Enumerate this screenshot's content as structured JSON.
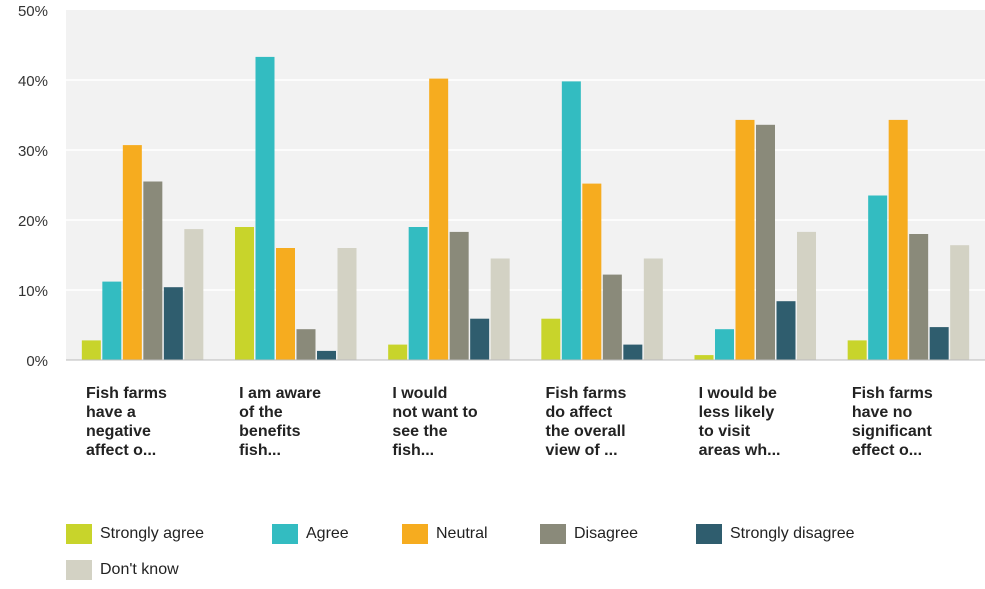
{
  "chart_data": {
    "type": "bar",
    "title": "",
    "xlabel": "",
    "ylabel": "",
    "ylim": [
      0,
      50
    ],
    "yticks": [
      "0%",
      "10%",
      "20%",
      "30%",
      "40%",
      "50%"
    ],
    "grid": true,
    "legend_position": "bottom",
    "categories": [
      "Fish farms have a negative affect o...",
      "I am aware of the benefits fish...",
      "I would not want to see the fish...",
      "Fish farms do affect the overall view of ...",
      "I would be less likely to visit areas wh...",
      "Fish farms have no significant effect o..."
    ],
    "category_lines": [
      [
        "Fish farms",
        "have a",
        "negative",
        "affect o..."
      ],
      [
        "I am aware",
        "of the",
        "benefits",
        "fish..."
      ],
      [
        "I would",
        "not want to",
        "see the",
        "fish..."
      ],
      [
        "Fish farms",
        "do affect",
        "the overall",
        "view of ..."
      ],
      [
        "I would be",
        "less likely",
        "to visit",
        "areas wh..."
      ],
      [
        "Fish farms",
        "have no",
        "significant",
        "effect o..."
      ]
    ],
    "series": [
      {
        "name": "Strongly agree",
        "color": "#c8d42b",
        "values": [
          2.8,
          19.0,
          2.2,
          5.9,
          0.7,
          2.8
        ]
      },
      {
        "name": "Agree",
        "color": "#33bcc1",
        "values": [
          11.2,
          43.3,
          19.0,
          39.8,
          4.4,
          23.5
        ]
      },
      {
        "name": "Neutral",
        "color": "#f6ac1f",
        "values": [
          30.7,
          16.0,
          40.2,
          25.2,
          34.3,
          34.3
        ]
      },
      {
        "name": "Disagree",
        "color": "#8a8a7a",
        "values": [
          25.5,
          4.4,
          18.3,
          12.2,
          33.6,
          18.0
        ]
      },
      {
        "name": "Strongly disagree",
        "color": "#2f5d6e",
        "values": [
          10.4,
          1.3,
          5.9,
          2.2,
          8.4,
          4.7
        ]
      },
      {
        "name": "Don't know",
        "color": "#d3d2c4",
        "values": [
          18.7,
          16.0,
          14.5,
          14.5,
          18.3,
          16.4
        ]
      }
    ]
  }
}
